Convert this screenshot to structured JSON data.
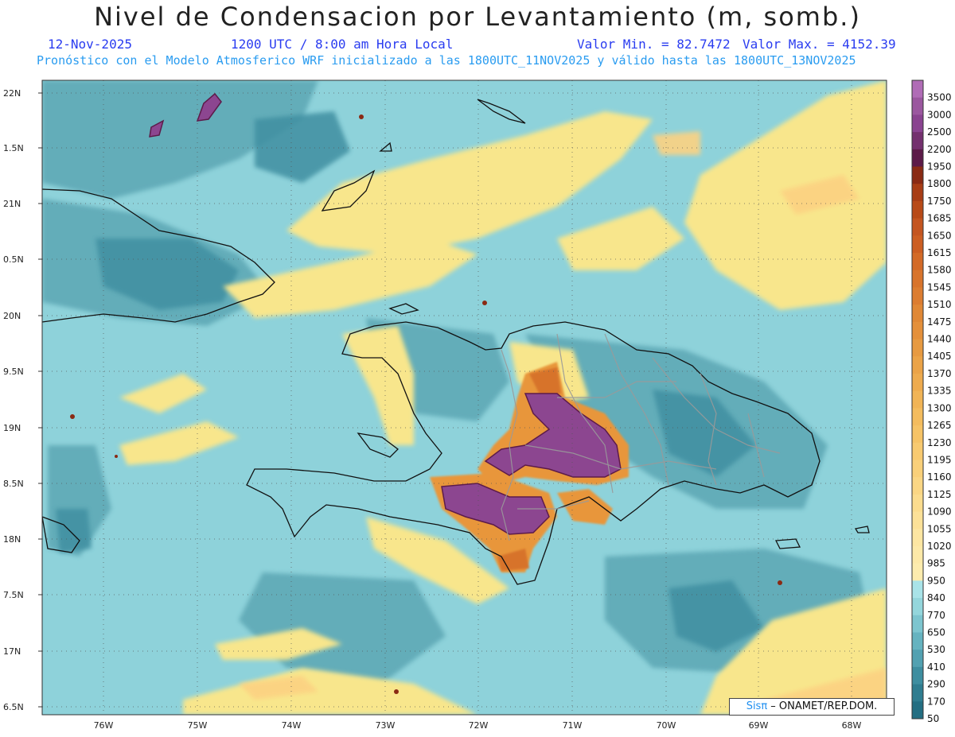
{
  "header": {
    "title": "Nivel de Condensacion por Levantamiento (m, somb.)",
    "date": "12-Nov-2025",
    "time": "1200 UTC / 8:00 am Hora Local",
    "min_label": "Valor Min. = 82.7472",
    "max_label": "Valor Max. = 4152.39",
    "forecast_note": "Pronóstico con el Modelo Atmosferico WRF inicializado a las 1800UTC_11NOV2025 y válido hasta las  1800UTC_13NOV2025"
  },
  "axes": {
    "lat_labels": [
      "22N",
      "1.5N",
      "21N",
      "0.5N",
      "20N",
      "9.5N",
      "19N",
      "8.5N",
      "18N",
      "7.5N",
      "17N",
      "6.5N"
    ],
    "lon_labels": [
      "76W",
      "75W",
      "74W",
      "73W",
      "72W",
      "71W",
      "70W",
      "69W",
      "68W"
    ]
  },
  "colorbar": {
    "labels": [
      "3500",
      "3000",
      "2500",
      "2200",
      "1950",
      "1800",
      "1750",
      "1685",
      "1650",
      "1615",
      "1580",
      "1545",
      "1510",
      "1475",
      "1440",
      "1405",
      "1370",
      "1335",
      "1300",
      "1265",
      "1230",
      "1195",
      "1160",
      "1125",
      "1090",
      "1055",
      "1020",
      "985",
      "950",
      "840",
      "770",
      "650",
      "530",
      "410",
      "290",
      "170",
      "50"
    ],
    "colors": [
      "#b06cb6",
      "#9b579f",
      "#8a4390",
      "#74306f",
      "#5c1a48",
      "#8a2a14",
      "#a83d15",
      "#b84a18",
      "#c45520",
      "#cc5e22",
      "#d36a27",
      "#d8742c",
      "#dc7d31",
      "#e08836",
      "#e4903b",
      "#e79a41",
      "#eba347",
      "#eeab4e",
      "#f1b456",
      "#f4bc5e",
      "#f6c366",
      "#f8ca70",
      "#f9d07a",
      "#fad684",
      "#fbdc8e",
      "#fce198",
      "#fde6a2",
      "#fde9a8",
      "#fdecae",
      "#a9e3e8",
      "#94d6dc",
      "#7dc5cf",
      "#66b3c0",
      "#52a1b1",
      "#3e8ea0",
      "#2f7d90",
      "#236e82"
    ]
  },
  "credit": {
    "brand": "Sisπ",
    "text": " – ONAMET/REP.DOM."
  },
  "legend_colors": {
    "ocean_base": "#8cd2da",
    "low": "#4a9aaa",
    "yellow": "#f8e68c",
    "orange": "#e8963a",
    "purple": "#8c4690"
  }
}
